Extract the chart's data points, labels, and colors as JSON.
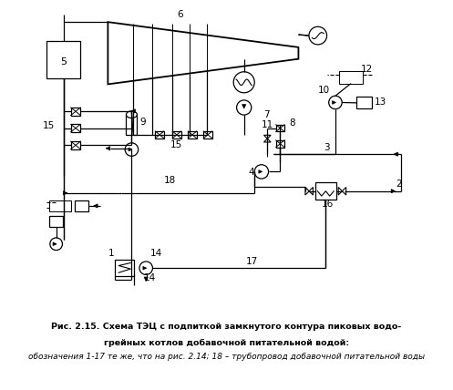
{
  "bg_color": "#ffffff",
  "fig_width": 4.97,
  "fig_height": 4.28,
  "dpi": 100,
  "caption_line1_bold": "Рис. 2.15. Схема ТЭЦ с подпиткой замкнутого контура пиковых водо-",
  "caption_line2_bold": "грейных котлов добавочной питательной водой: ",
  "caption_line2_italic": "обозначения 1-17 те же, что",
  "caption_line3_italic": "на рис. 2.14; 18 – трубопровод добавочной питательной воды"
}
